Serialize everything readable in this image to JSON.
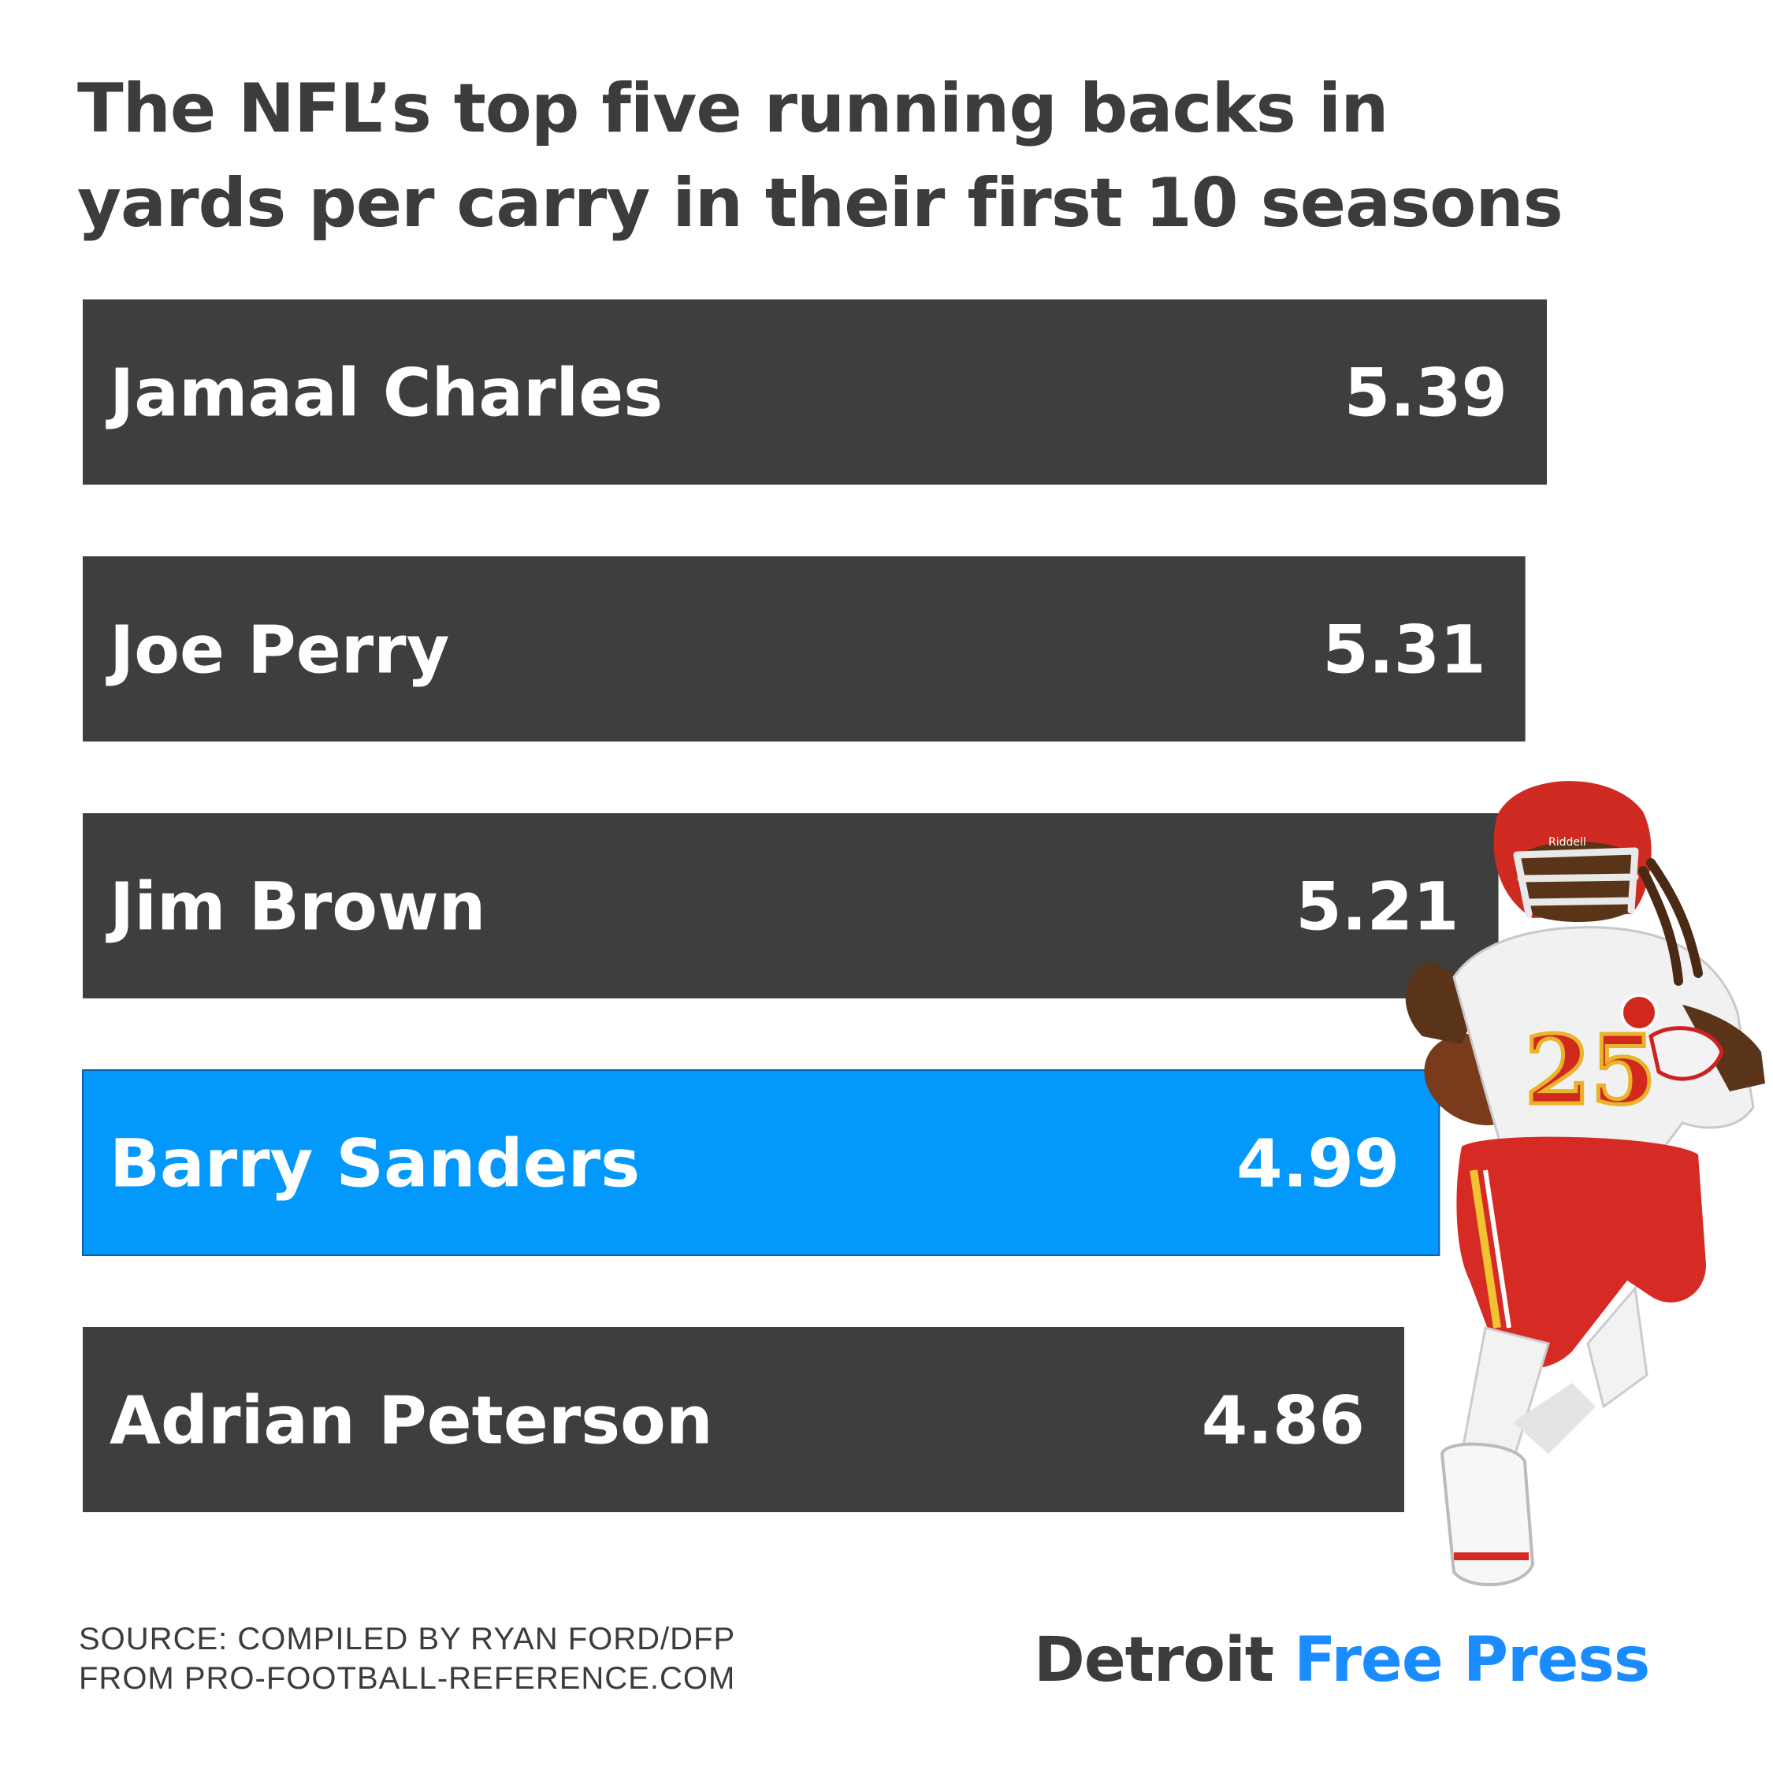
{
  "title": {
    "line1": "The NFL’s top five running backs in",
    "line2": "yards per carry in their first 10 seasons"
  },
  "chart_data": {
    "type": "bar",
    "orientation": "horizontal",
    "categories": [
      "Jamaal Charles",
      "Joe Perry",
      "Jim Brown",
      "Barry Sanders",
      "Adrian Peterson"
    ],
    "values": [
      5.39,
      5.31,
      5.21,
      4.99,
      4.86
    ],
    "value_labels": [
      "5.39",
      "5.31",
      "5.21",
      "4.99",
      "4.86"
    ],
    "highlight": "Barry Sanders",
    "colors": {
      "default": "#3e3e3e",
      "highlight": "#0398fc"
    },
    "title": "The NFL’s top five running backs in yards per carry in their first 10 seasons",
    "grid": false,
    "legend": "none"
  },
  "image": {
    "player_icon": "football-player-photo",
    "jersey_number": "25",
    "helmet_text": "Riddell"
  },
  "footer": {
    "source_line1": "SOURCE: COMPILED BY RYAN FORD/DFP",
    "source_line2": "FROM PRO-FOOTBALL-REFERENCE.COM",
    "brand_part1": "Detroit",
    "brand_part2": "Free Press"
  }
}
